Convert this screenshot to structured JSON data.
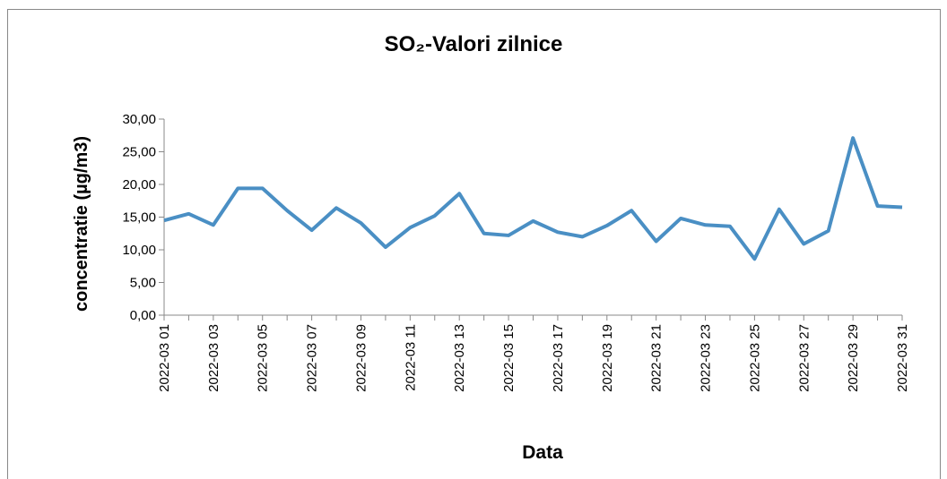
{
  "chart_data": {
    "type": "line",
    "title": "SO₂-Valori zilnice",
    "x_label": "Data",
    "y_label": "concentratie (µg/m3)",
    "categories": [
      "2022-03 01",
      null,
      "2022-03 03",
      null,
      "2022-03 05",
      null,
      "2022-03 07",
      null,
      "2022-03 09",
      null,
      "2022-03 11",
      null,
      "2022-03 13",
      null,
      "2022-03 15",
      null,
      "2022-03 17",
      null,
      "2022-03 19",
      null,
      "2022-03 21",
      null,
      "2022-03 23",
      null,
      "2022-03 25",
      null,
      "2022-03 27",
      null,
      "2022-03 29",
      null,
      "2022-03 31"
    ],
    "series": [
      {
        "name": "SO₂",
        "color": "#4a8fc4",
        "values": [
          14.5,
          15.5,
          13.8,
          19.4,
          19.4,
          16.0,
          13.0,
          16.4,
          14.1,
          10.4,
          13.4,
          15.2,
          18.6,
          12.5,
          12.2,
          14.4,
          12.7,
          12.0,
          13.7,
          16.0,
          11.3,
          14.8,
          13.8,
          13.6,
          8.6,
          16.2,
          10.9,
          12.9,
          27.1,
          16.7,
          16.5
        ]
      }
    ],
    "ylim": [
      0,
      30
    ],
    "yticks": [
      {
        "value": 0,
        "label": "0,00"
      },
      {
        "value": 5,
        "label": "5,00"
      },
      {
        "value": 10,
        "label": "10,00"
      },
      {
        "value": 15,
        "label": "15,00"
      },
      {
        "value": 20,
        "label": "20,00"
      },
      {
        "value": 25,
        "label": "25,00"
      },
      {
        "value": 30,
        "label": "30,00"
      }
    ],
    "grid": false
  }
}
